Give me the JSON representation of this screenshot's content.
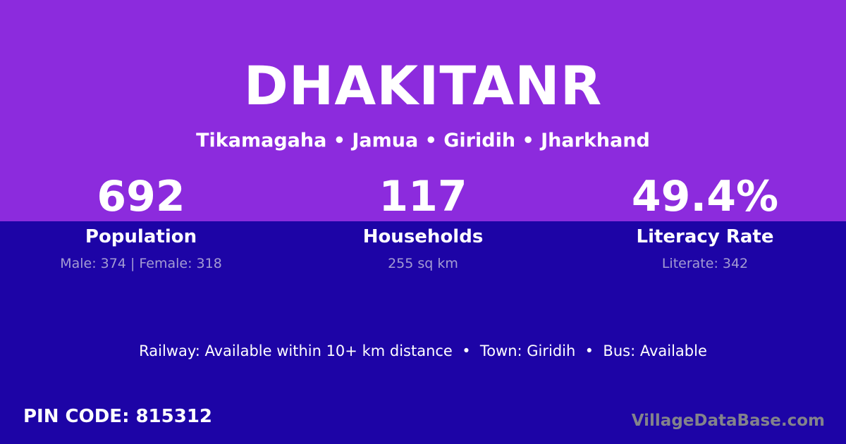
{
  "colors": {
    "hero_background": "#8C2BDD",
    "lower_background": "#1D04A6",
    "primary_text": "#FFFFFF",
    "stat_detail_text": "#A49CD3",
    "watermark_text": "#83838B"
  },
  "header": {
    "title": "DHAKITANR",
    "subtitle": "Tikamagaha • Jamua • Giridih • Jharkhand"
  },
  "stats": [
    {
      "value": "692",
      "label": "Population",
      "detail": "Male: 374 | Female: 318"
    },
    {
      "value": "117",
      "label": "Households",
      "detail": "255 sq km"
    },
    {
      "value": "49.4%",
      "label": "Literacy Rate",
      "detail": "Literate: 342"
    }
  ],
  "info_line": {
    "text": "Railway: Available within 10+ km distance  •  Town: Giridih  •  Bus: Available"
  },
  "footer": {
    "pin_label": "PIN CODE:",
    "pin_value": "815312",
    "watermark": "VillageDataBase.com"
  }
}
